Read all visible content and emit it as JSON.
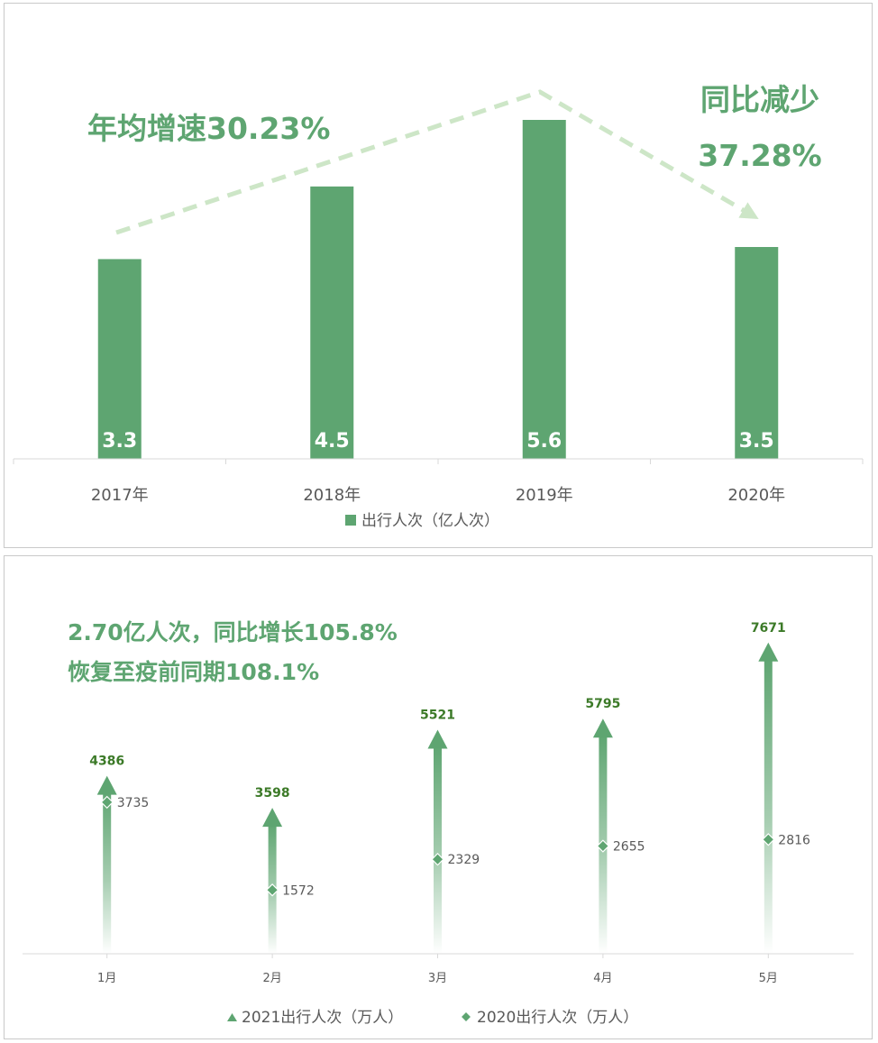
{
  "colors": {
    "bar": "#5ea571",
    "accent_text": "#5ea571",
    "trend_arrow": "#cde6c7",
    "arrow_2021": "#5ea571",
    "marker_2020": "#5ea571",
    "value_2021": "#3c7a28",
    "axis": "#d9d9d9",
    "tick_text": "#595959"
  },
  "chart_data": [
    {
      "type": "bar",
      "categories": [
        "2017年",
        "2018年",
        "2019年",
        "2020年"
      ],
      "values": [
        3.3,
        4.5,
        5.6,
        3.5
      ],
      "value_labels": [
        "3.3",
        "4.5",
        "5.6",
        "3.5"
      ],
      "series": [
        {
          "name": "出行人次（亿人次）",
          "values": [
            3.3,
            4.5,
            5.6,
            3.5
          ]
        }
      ],
      "legend": "bottom-center",
      "grid": false,
      "annotations": {
        "growth": "年均增速30.23%",
        "decline_line1": "同比减少",
        "decline_line2": "37.28%"
      }
    },
    {
      "type": "scatter",
      "categories": [
        "1月",
        "2月",
        "3月",
        "4月",
        "5月"
      ],
      "series": [
        {
          "name": "2021出行人次（万人）",
          "marker": "triangle-arrow",
          "values": [
            4386,
            3598,
            5521,
            5795,
            7671
          ]
        },
        {
          "name": "2020出行人次（万人）",
          "marker": "diamond",
          "values": [
            3735,
            1572,
            2329,
            2655,
            2816
          ]
        }
      ],
      "legend": "bottom-center",
      "grid": false,
      "annotations": {
        "line1": "2.70亿人次，同比增长105.8%",
        "line2": "恢复至疫前同期108.1%"
      }
    }
  ]
}
